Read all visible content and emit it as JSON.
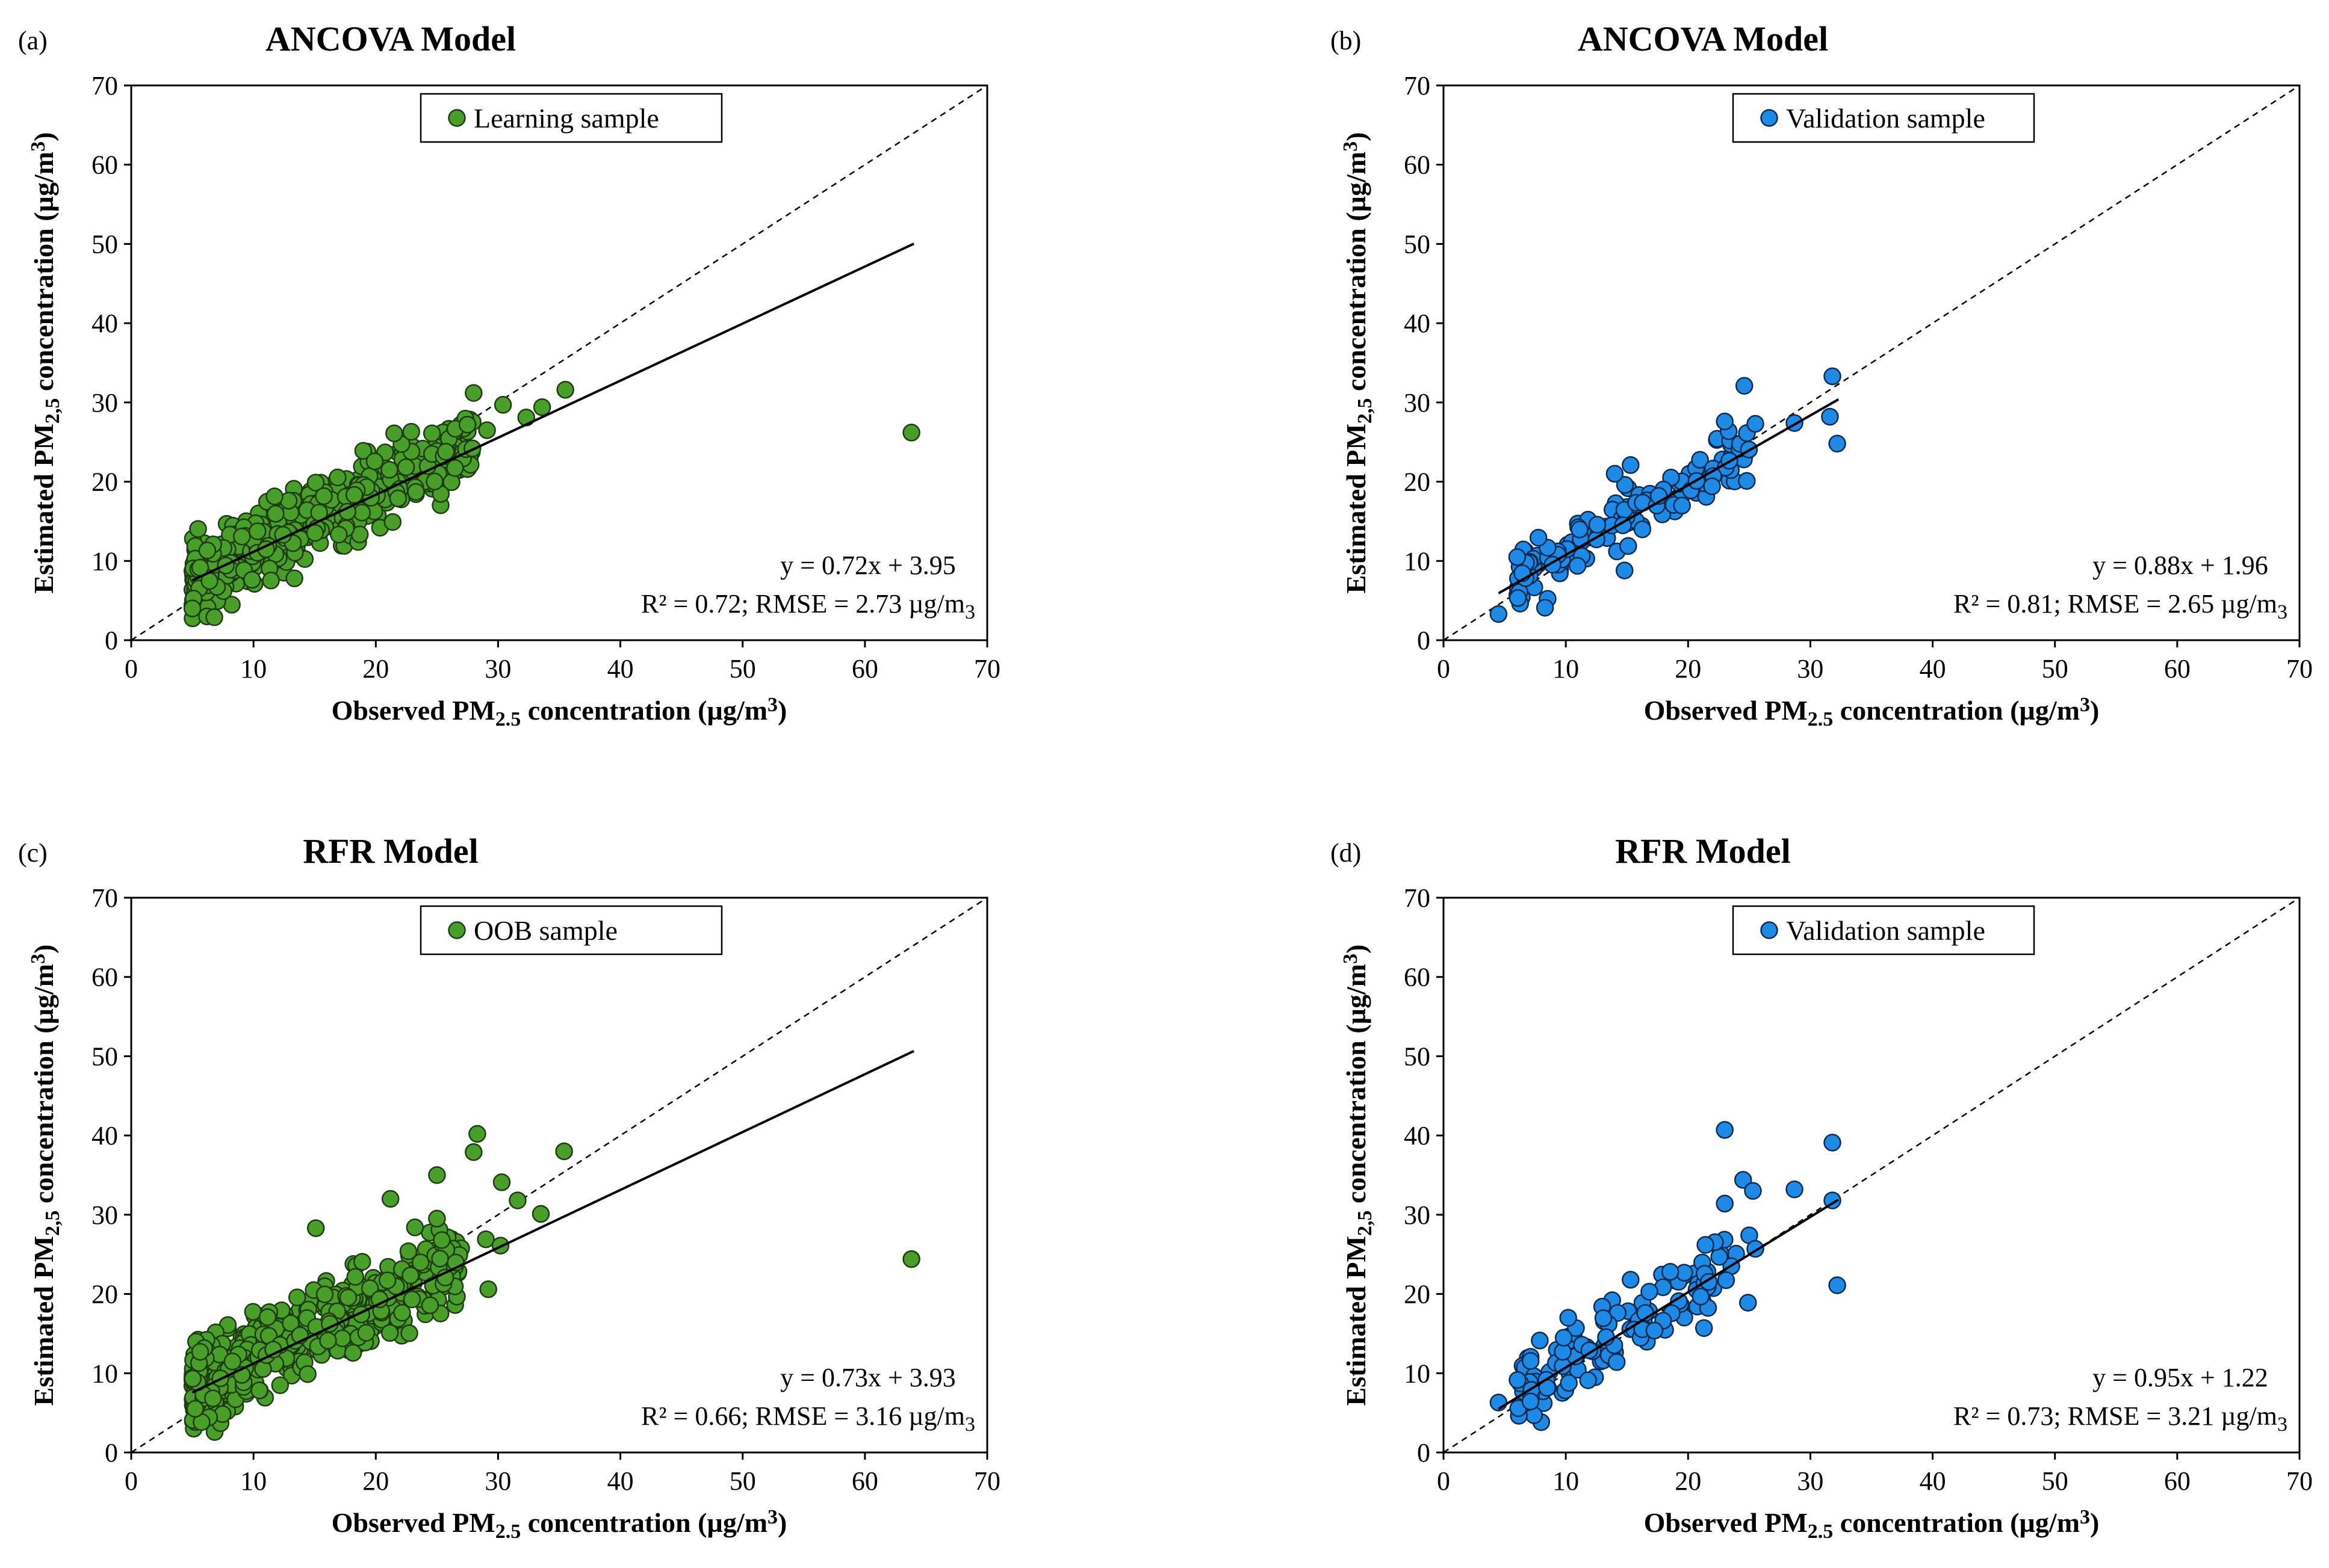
{
  "figure": {
    "colors": {
      "learning": "#4a9e2a",
      "validation": "#1e8ae6",
      "edge": "#1e3c12",
      "edge_blue": "#0a2a50",
      "line": "#000000"
    }
  },
  "chart_data": [
    {
      "type": "scatter",
      "panel_label": "(a)",
      "title": "ANCOVA Model",
      "legend": "Learning sample",
      "legend_position": "top-center",
      "series_color": "#4a9e2a",
      "xlabel_parts": [
        "Observed PM",
        "2.5",
        " concentration (µg/m",
        "3",
        ")"
      ],
      "ylabel_parts": [
        "Estimated PM",
        "2,5",
        " concentration (µg/m",
        "3",
        ")"
      ],
      "xlim": [
        0,
        70
      ],
      "ylim": [
        0,
        70
      ],
      "xticks": [
        "0",
        "10",
        "20",
        "30",
        "40",
        "50",
        "60",
        "70"
      ],
      "yticks": [
        "0",
        "10",
        "20",
        "30",
        "40",
        "50",
        "60",
        "70"
      ],
      "equation": "y = 0.72x + 3.95",
      "stats_parts": [
        "R² = 0.72; RMSE = 2.73 µg/m",
        "3"
      ],
      "fit": {
        "slope": 0.72,
        "intercept": 3.95,
        "x_range": [
          5,
          64
        ]
      },
      "cloud": {
        "n": 520,
        "x_min": 5,
        "x_max": 28,
        "noise": 2.2,
        "seed": 11
      },
      "points": [
        [
          63.8,
          26.2
        ],
        [
          35.5,
          31.6
        ],
        [
          33.6,
          29.4
        ],
        [
          32.3,
          28.1
        ],
        [
          30.4,
          29.7
        ],
        [
          28.0,
          31.2
        ],
        [
          29.1,
          26.5
        ],
        [
          27.5,
          27.2
        ],
        [
          24.6,
          26.1
        ],
        [
          22.9,
          26.3
        ],
        [
          21.5,
          26.1
        ],
        [
          6.2,
          3.0
        ],
        [
          6.8,
          2.9
        ],
        [
          5.0,
          4.0
        ]
      ]
    },
    {
      "type": "scatter",
      "panel_label": "(b)",
      "title": "ANCOVA Model",
      "legend": "Validation sample",
      "legend_position": "top-center",
      "series_color": "#1e8ae6",
      "xlabel_parts": [
        "Observed PM",
        "2.5",
        " concentration (µg/m",
        "3",
        ")"
      ],
      "ylabel_parts": [
        "Estimated PM",
        "2,5",
        " concentration (µg/m",
        "3",
        ")"
      ],
      "xlim": [
        0,
        70
      ],
      "ylim": [
        0,
        70
      ],
      "xticks": [
        "0",
        "10",
        "20",
        "30",
        "40",
        "50",
        "60",
        "70"
      ],
      "yticks": [
        "0",
        "10",
        "20",
        "30",
        "40",
        "50",
        "60",
        "70"
      ],
      "equation": "y = 0.88x + 1.96",
      "stats_parts": [
        "R² = 0.81; RMSE = 2.65 µg/m",
        "3"
      ],
      "fit": {
        "slope": 0.88,
        "intercept": 1.96,
        "x_range": [
          4.5,
          32.3
        ]
      },
      "cloud": {
        "n": 135,
        "x_min": 6,
        "x_max": 25,
        "noise": 1.8,
        "seed": 23
      },
      "points": [
        [
          4.5,
          3.3
        ],
        [
          8.3,
          4.1
        ],
        [
          24.6,
          32.1
        ],
        [
          31.8,
          33.3
        ],
        [
          32.2,
          24.8
        ],
        [
          31.6,
          28.2
        ],
        [
          28.7,
          27.4
        ],
        [
          25.5,
          27.3
        ],
        [
          23.0,
          27.6
        ],
        [
          24.8,
          20.1
        ],
        [
          14.8,
          8.8
        ],
        [
          15.3,
          22.1
        ],
        [
          14.0,
          21.0
        ]
      ]
    },
    {
      "type": "scatter",
      "panel_label": "(c)",
      "title": "RFR Model",
      "legend": "OOB sample",
      "legend_position": "top-center",
      "series_color": "#4a9e2a",
      "xlabel_parts": [
        "Observed PM",
        "2.5",
        " concentration (µg/m",
        "3",
        ")"
      ],
      "ylabel_parts": [
        "Estimated PM",
        "2,5",
        " concentration (µg/m",
        "3",
        ")"
      ],
      "xlim": [
        0,
        70
      ],
      "ylim": [
        0,
        70
      ],
      "xticks": [
        "0",
        "10",
        "20",
        "30",
        "40",
        "50",
        "60",
        "70"
      ],
      "yticks": [
        "0",
        "10",
        "20",
        "30",
        "40",
        "50",
        "60",
        "70"
      ],
      "equation": "y = 0.73x + 3.93",
      "stats_parts": [
        "R² = 0.66; RMSE = 3.16 µg/m",
        "3"
      ],
      "fit": {
        "slope": 0.73,
        "intercept": 3.93,
        "x_range": [
          5,
          64
        ]
      },
      "cloud": {
        "n": 520,
        "x_min": 5,
        "x_max": 27,
        "noise": 2.6,
        "seed": 37
      },
      "points": [
        [
          63.8,
          24.4
        ],
        [
          35.4,
          38.0
        ],
        [
          33.5,
          30.1
        ],
        [
          31.6,
          31.8
        ],
        [
          30.3,
          34.1
        ],
        [
          28.3,
          40.2
        ],
        [
          28.0,
          37.9
        ],
        [
          25.0,
          35.0
        ],
        [
          25.0,
          29.5
        ],
        [
          21.2,
          32.0
        ],
        [
          15.1,
          28.3
        ],
        [
          23.2,
          28.4
        ],
        [
          29.0,
          26.9
        ],
        [
          29.2,
          20.6
        ],
        [
          30.2,
          26.1
        ]
      ]
    },
    {
      "type": "scatter",
      "panel_label": "(d)",
      "title": "RFR Model",
      "legend": "Validation sample",
      "legend_position": "top-center",
      "series_color": "#1e8ae6",
      "xlabel_parts": [
        "Observed PM",
        "2.5",
        " concentration (µg/m",
        "3",
        ")"
      ],
      "ylabel_parts": [
        "Estimated PM",
        "2,5",
        " concentration (µg/m",
        "3",
        ")"
      ],
      "xlim": [
        0,
        70
      ],
      "ylim": [
        0,
        70
      ],
      "xticks": [
        "0",
        "10",
        "20",
        "30",
        "40",
        "50",
        "60",
        "70"
      ],
      "yticks": [
        "0",
        "10",
        "20",
        "30",
        "40",
        "50",
        "60",
        "70"
      ],
      "equation": "y = 0.95x + 1.22",
      "stats_parts": [
        "R² = 0.73; RMSE = 3.21 µg/m",
        "3"
      ],
      "fit": {
        "slope": 0.95,
        "intercept": 1.22,
        "x_range": [
          4.5,
          32.3
        ]
      },
      "cloud": {
        "n": 130,
        "x_min": 6,
        "x_max": 24,
        "noise": 2.1,
        "seed": 53
      },
      "points": [
        [
          4.5,
          6.3
        ],
        [
          23.0,
          40.7
        ],
        [
          24.5,
          34.4
        ],
        [
          25.3,
          33.0
        ],
        [
          23.0,
          31.4
        ],
        [
          28.7,
          33.2
        ],
        [
          31.8,
          39.1
        ],
        [
          31.8,
          31.8
        ],
        [
          32.2,
          21.1
        ],
        [
          25.0,
          27.4
        ],
        [
          25.5,
          25.7
        ],
        [
          24.9,
          18.9
        ],
        [
          21.3,
          15.7
        ],
        [
          10.2,
          17.0
        ],
        [
          15.3,
          21.8
        ]
      ]
    }
  ]
}
